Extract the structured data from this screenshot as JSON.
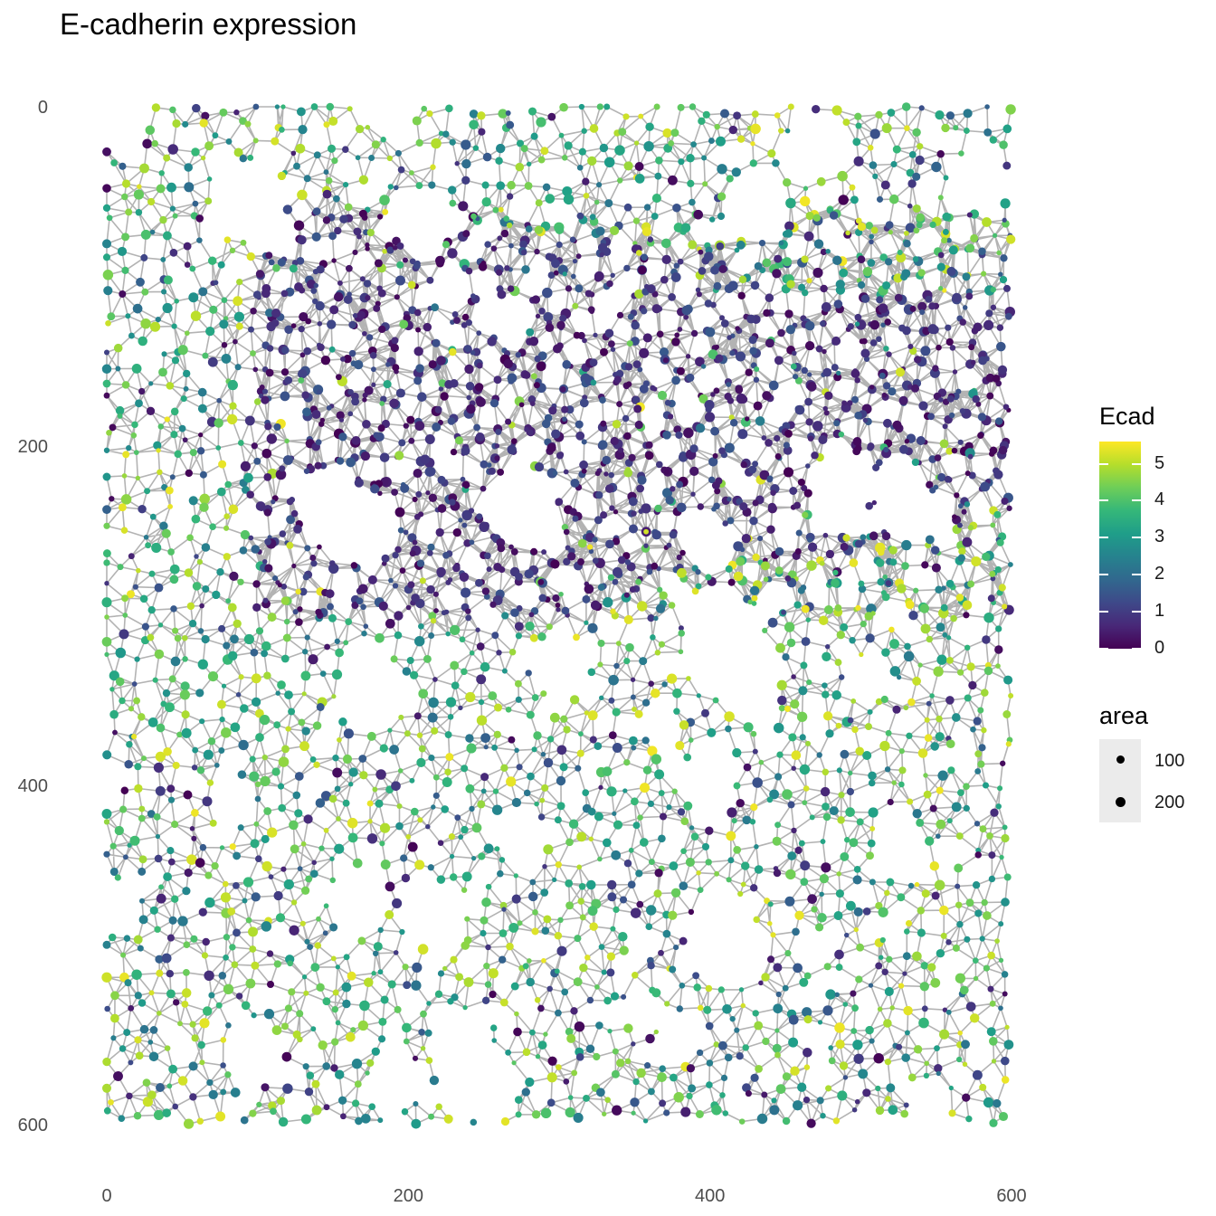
{
  "title": "E-cadherin expression",
  "chart_data": {
    "type": "scatter",
    "subtype": "spatial cell-neighbour graph (nodes = cells, grey edges = neighbour links)",
    "title": "E-cadherin expression",
    "xlabel": "",
    "ylabel": "",
    "xlim": [
      0,
      600
    ],
    "ylim": [
      0,
      600
    ],
    "y_reversed": true,
    "x_ticks": [
      "0",
      "200",
      "400",
      "600"
    ],
    "y_ticks": [
      "0",
      "200",
      "400",
      "600"
    ],
    "grid": false,
    "edge_color": "#b3b3b3",
    "color_legend": {
      "title": "Ecad",
      "palette": "viridis",
      "min": 0,
      "max": 5.6,
      "ticks": [
        "0",
        "1",
        "2",
        "3",
        "4",
        "5"
      ],
      "colors": [
        "#440154",
        "#3b528b",
        "#21908c",
        "#5dc863",
        "#fde725"
      ]
    },
    "size_legend": {
      "title": "area",
      "entries": [
        {
          "label": "100",
          "value": 100
        },
        {
          "label": "200",
          "value": 200
        }
      ]
    },
    "regions": [
      {
        "description": "low Ecad band",
        "x": [
          110,
          420
        ],
        "y": [
          55,
          300
        ],
        "ecad_mean": 0.8
      },
      {
        "description": "low Ecad band",
        "x": [
          400,
          600
        ],
        "y": [
          100,
          260
        ],
        "ecad_mean": 0.6
      },
      {
        "description": "high Ecad",
        "x": [
          0,
          600
        ],
        "y": [
          0,
          600
        ],
        "ecad_mean": 3.4
      }
    ],
    "n_points_approx": 3200
  }
}
